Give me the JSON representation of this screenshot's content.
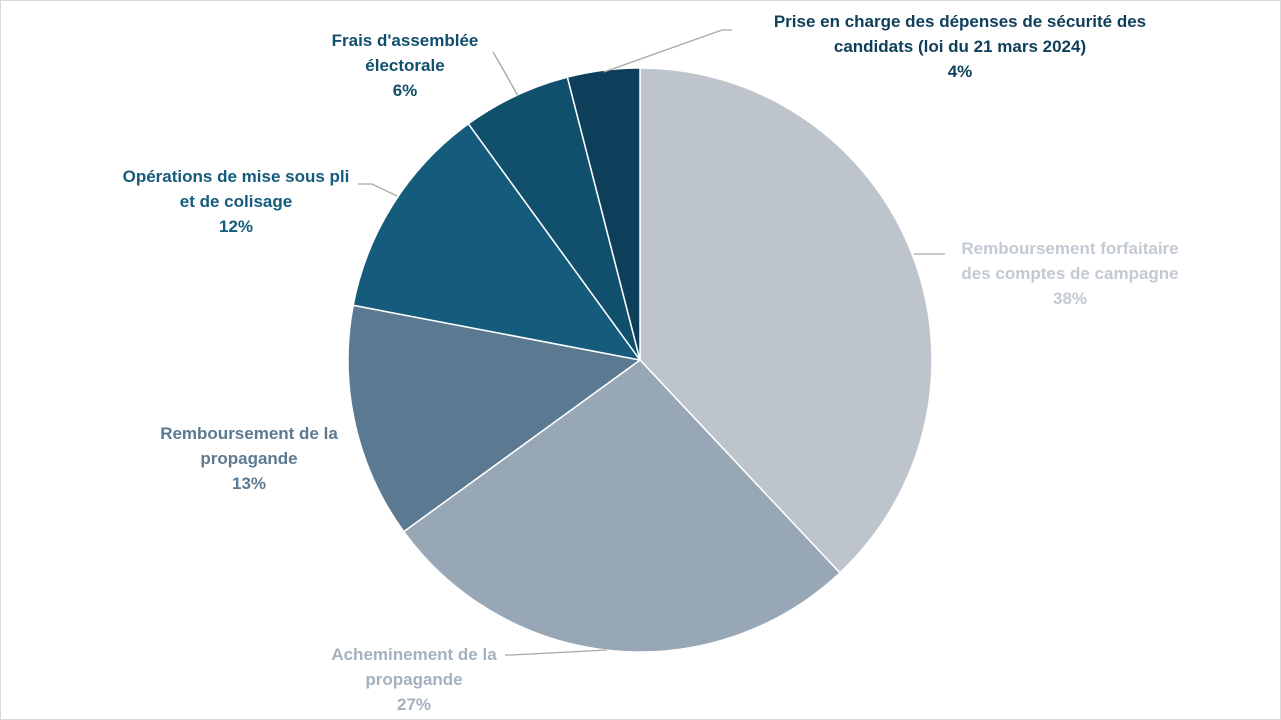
{
  "chart_data": {
    "type": "pie",
    "title": "",
    "slices": [
      {
        "lines": [
          "Remboursement forfaitaire",
          "des comptes de campagne"
        ],
        "label": "Remboursement forfaitaire des comptes de campagne",
        "value": 38,
        "value_label": "38%",
        "color": "#bdc4cc",
        "label_color": "#c3cad2"
      },
      {
        "lines": [
          "Acheminement de la",
          "propagande"
        ],
        "label": "Acheminement de la propagande",
        "value": 27,
        "value_label": "27%",
        "color": "#98a7b5",
        "label_color": "#a4b1be"
      },
      {
        "lines": [
          "Remboursement de la",
          "propagande"
        ],
        "label": "Remboursement de la propagande",
        "value": 13,
        "value_label": "13%",
        "color": "#5b7a92",
        "label_color": "#5b7a92"
      },
      {
        "lines": [
          "Opérations de mise sous pli",
          "et de colisage"
        ],
        "label": "Opérations de mise sous pli et de colisage",
        "value": 12,
        "value_label": "12%",
        "color": "#145b7c",
        "label_color": "#145b7c"
      },
      {
        "lines": [
          "Frais d'assemblée",
          "électorale"
        ],
        "label": "Frais d'assemblée électorale",
        "value": 6,
        "value_label": "6%",
        "color": "#11506c",
        "label_color": "#11506c"
      },
      {
        "lines": [
          "Prise en charge des dépenses de sécurité des",
          "candidats (loi du 21 mars 2024)"
        ],
        "label": "Prise en charge des dépenses de sécurité des candidats (loi du 21 mars 2024)",
        "value": 4,
        "value_label": "4%",
        "color": "#0e3f5a",
        "label_color": "#0e3f5a"
      }
    ]
  }
}
